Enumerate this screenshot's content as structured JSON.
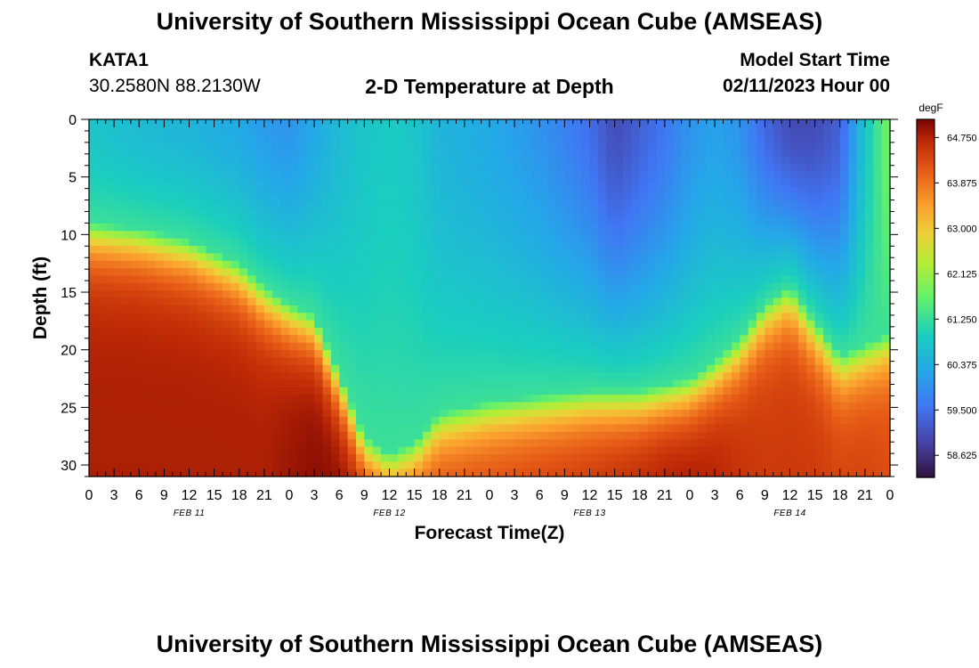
{
  "header": {
    "main_title": "University of Southern Mississippi Ocean Cube (AMSEAS)",
    "station_id": "KATA1",
    "station_coords": "30.2580N  88.2130W",
    "plot_title": "2-D Temperature at Depth",
    "model_label": "Model Start Time",
    "model_date": "02/11/2023 Hour 00"
  },
  "footer": {
    "title": "University of Southern Mississippi Ocean Cube (AMSEAS)"
  },
  "chart_data": {
    "type": "heatmap",
    "title": "2-D Temperature at Depth",
    "xlabel": "Forecast Time(Z)",
    "ylabel": "Depth (ft)",
    "x_hours_range": [
      0,
      96
    ],
    "ylim": [
      0,
      31
    ],
    "x_tick_labels": [
      "0",
      "3",
      "6",
      "9",
      "12",
      "15",
      "18",
      "21",
      "0",
      "3",
      "6",
      "9",
      "12",
      "15",
      "18",
      "21",
      "0",
      "3",
      "6",
      "9",
      "12",
      "15",
      "18",
      "21",
      "0",
      "3",
      "6",
      "9",
      "12",
      "15",
      "18",
      "21",
      "0"
    ],
    "y_ticks": [
      0,
      5,
      10,
      15,
      20,
      25,
      30
    ],
    "day_labels": [
      {
        "label": "FEB 11",
        "hour": 12
      },
      {
        "label": "FEB 12",
        "hour": 36
      },
      {
        "label": "FEB 13",
        "hour": 60
      },
      {
        "label": "FEB 14",
        "hour": 84
      }
    ],
    "colorbar": {
      "units": "degF",
      "min": 58.2,
      "max": 65.1,
      "tick_values": [
        64.75,
        63.875,
        63.0,
        62.125,
        61.25,
        60.375,
        59.5,
        58.625
      ],
      "tick_labels": [
        "64.750",
        "63.875",
        "63.000",
        "62.125",
        "61.250",
        "60.375",
        "59.500",
        "58.625"
      ]
    },
    "grid_profile": {
      "description": "Temperature field: surface temp (degF) and thermocline depth (ft) per forecast hour",
      "hours": [
        0,
        6,
        12,
        18,
        21,
        24,
        27,
        30,
        33,
        36,
        39,
        42,
        48,
        54,
        60,
        63,
        66,
        69,
        72,
        75,
        78,
        81,
        84,
        87,
        90,
        93,
        96
      ],
      "surface_temp": [
        60.8,
        60.6,
        60.5,
        60.3,
        60.1,
        60.0,
        60.3,
        60.6,
        60.8,
        60.9,
        60.8,
        60.5,
        60.3,
        60.0,
        59.5,
        59.0,
        59.3,
        59.6,
        60.0,
        60.2,
        60.0,
        59.4,
        59.0,
        59.0,
        59.3,
        60.8,
        61.9
      ],
      "cline_depth": [
        9.0,
        9.5,
        10.5,
        12.5,
        14.5,
        16.0,
        17.0,
        22.0,
        27.5,
        29.0,
        28.0,
        25.5,
        24.5,
        24.0,
        23.5,
        23.5,
        23.5,
        23.0,
        22.5,
        21.0,
        19.0,
        16.0,
        14.5,
        17.5,
        20.5,
        19.5,
        18.5
      ],
      "bottom_temp": [
        64.8,
        64.8,
        64.8,
        64.8,
        64.8,
        64.9,
        65.0,
        65.0,
        64.9,
        64.6,
        64.5,
        64.4,
        64.4,
        64.5,
        64.6,
        64.7,
        64.8,
        64.9,
        64.9,
        64.8,
        64.6,
        64.5,
        64.5,
        64.5,
        64.4,
        64.4,
        64.3
      ]
    }
  }
}
